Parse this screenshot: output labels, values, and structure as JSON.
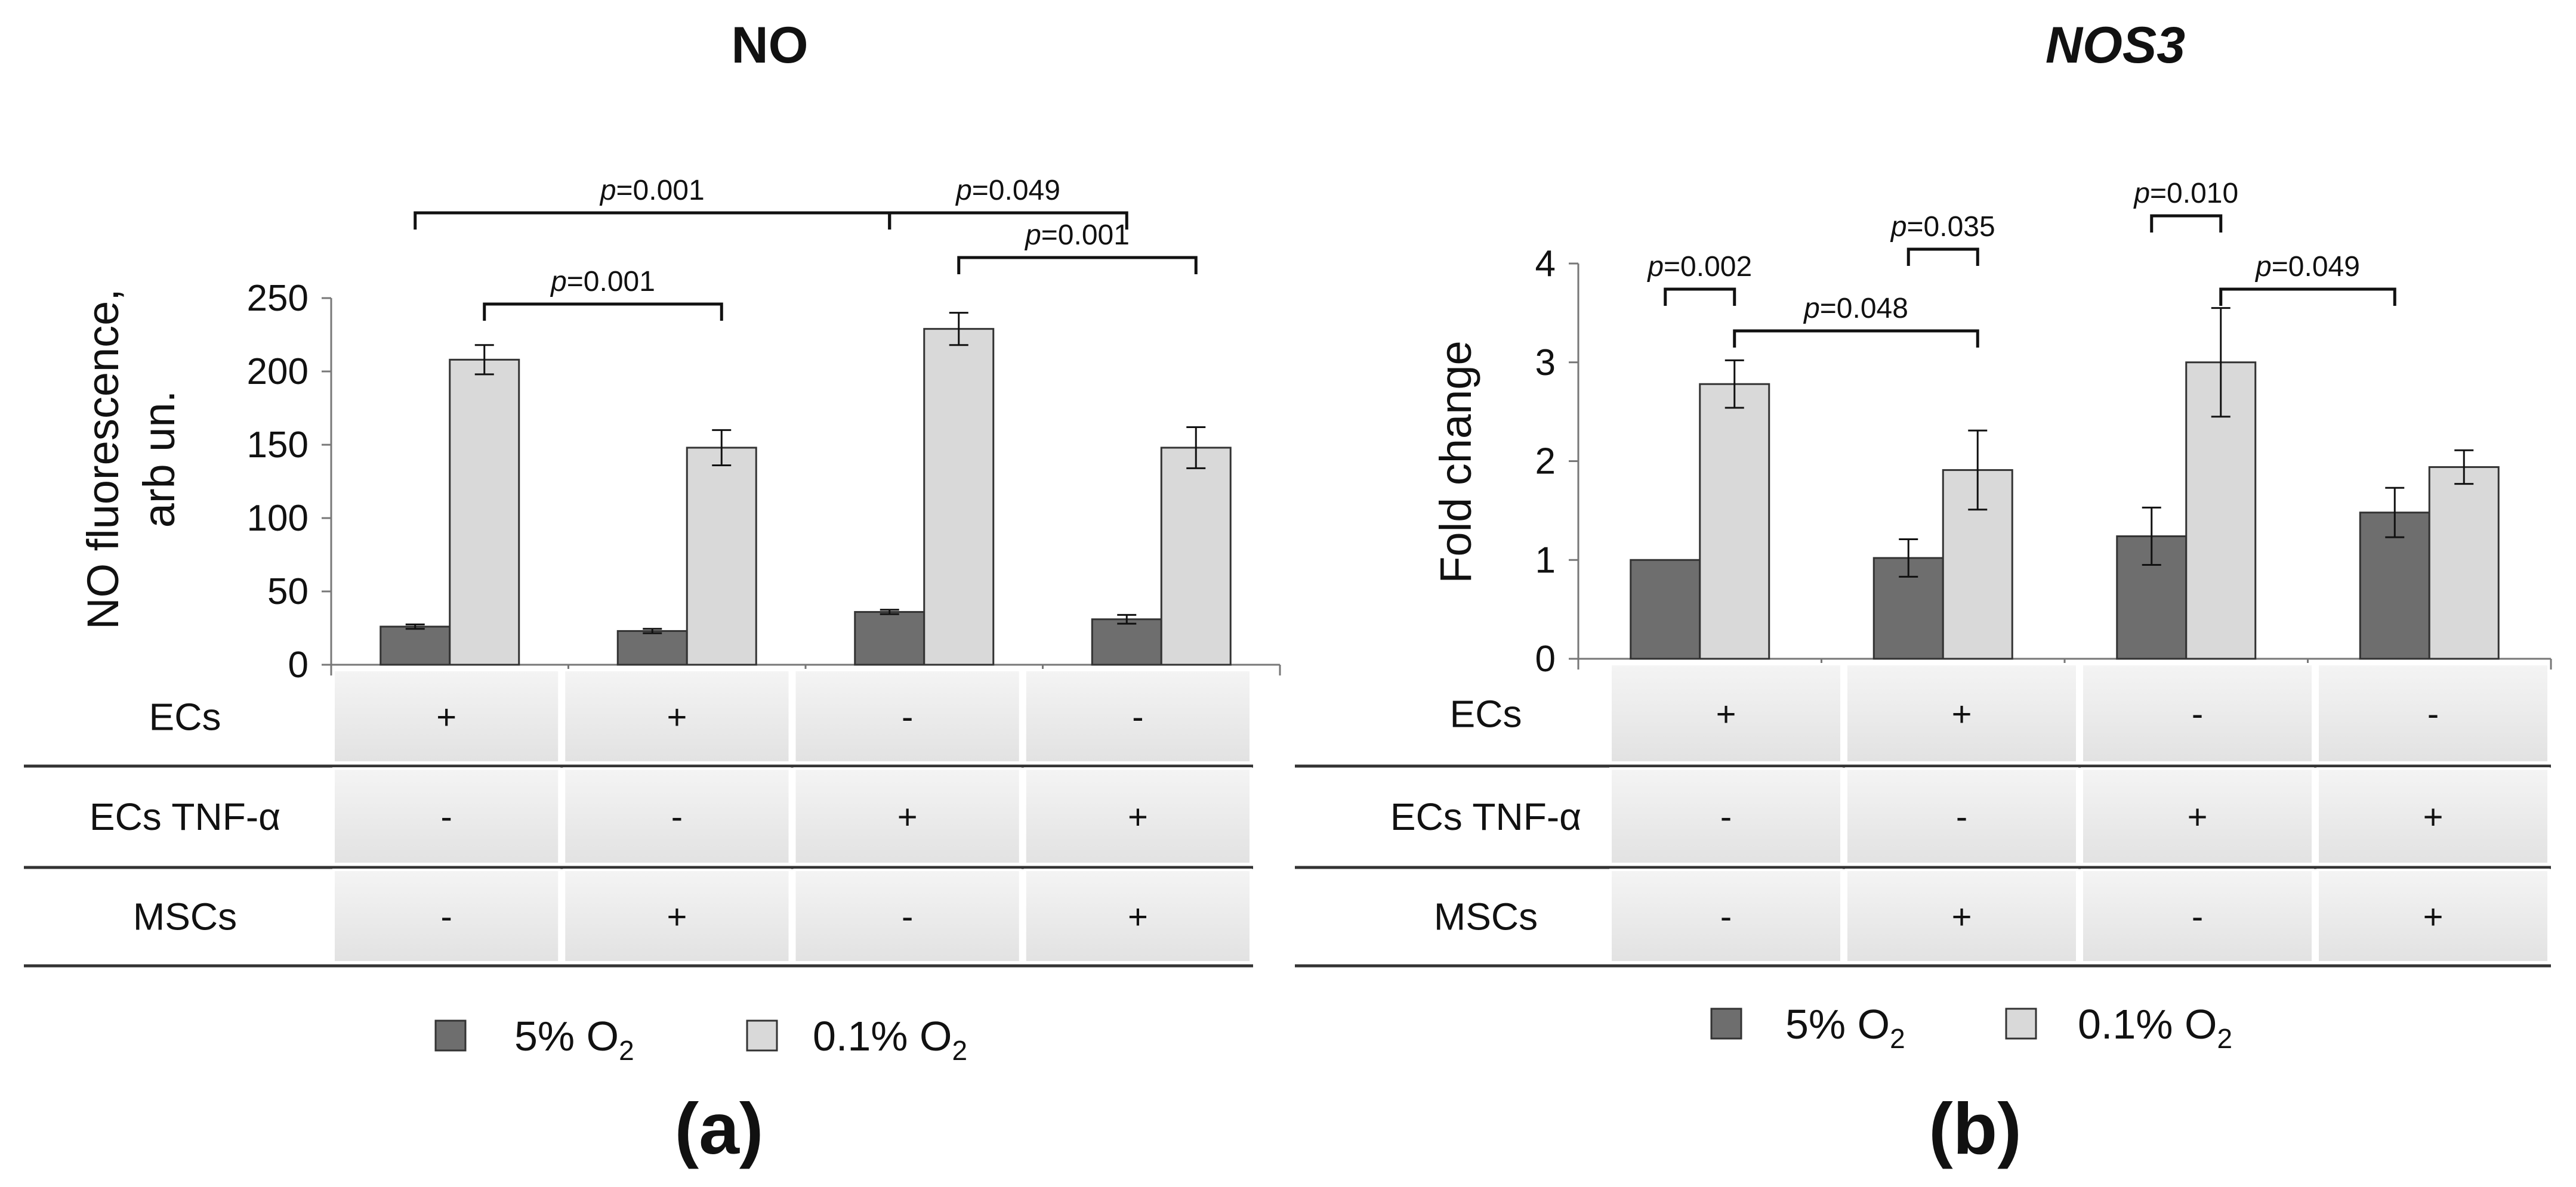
{
  "legend": [
    {
      "name": "5% O",
      "sub": "2",
      "color": "#6e6e6e"
    },
    {
      "name": "0.1% O",
      "sub": "2",
      "color": "#d9d9d9"
    }
  ],
  "row_labels": [
    "ECs",
    "ECs TNF-α",
    "MSCs"
  ],
  "chart_data": [
    {
      "type": "bar",
      "title": "NO",
      "panel_label": "(a)",
      "ylabel_lines": [
        "NO fluorescence,",
        "arb un."
      ],
      "ylim": [
        0,
        250
      ],
      "yticks": [
        0,
        50,
        100,
        150,
        200,
        250
      ],
      "groups": 4,
      "series": [
        {
          "name": "5% O2",
          "values": [
            26,
            23,
            36,
            31
          ],
          "errors": [
            1.5,
            1.5,
            1.5,
            3
          ]
        },
        {
          "name": "0.1% O2",
          "values": [
            208,
            148,
            229,
            148
          ],
          "errors": [
            10,
            12,
            11,
            14
          ]
        }
      ],
      "conditions": [
        [
          "+",
          "+",
          "-",
          "-"
        ],
        [
          "-",
          "-",
          "+",
          "+"
        ],
        [
          "-",
          "+",
          "-",
          "+"
        ]
      ],
      "comparisons": [
        {
          "p": "0.001",
          "from": [
            0,
            0
          ],
          "to": [
            2,
            0
          ],
          "level": 3
        },
        {
          "p": "0.049",
          "from": [
            2,
            0
          ],
          "to": [
            3,
            0
          ],
          "level": 3
        },
        {
          "p": "0.001",
          "from": [
            0,
            1
          ],
          "to": [
            1,
            1
          ],
          "level": 1
        },
        {
          "p": "0.001",
          "from": [
            2,
            1
          ],
          "to": [
            3,
            1
          ],
          "level": 2
        }
      ]
    },
    {
      "type": "bar",
      "title": "NOS3",
      "panel_label": "(b)",
      "ylabel_lines": [
        "Fold change"
      ],
      "ylim": [
        0,
        4
      ],
      "yticks": [
        0,
        1,
        2,
        3,
        4
      ],
      "groups": 4,
      "series": [
        {
          "name": "5% O2",
          "values": [
            1.0,
            1.02,
            1.24,
            1.48
          ],
          "errors": [
            0,
            0.19,
            0.29,
            0.25
          ]
        },
        {
          "name": "0.1% O2",
          "values": [
            2.78,
            1.91,
            3.0,
            1.94
          ],
          "errors": [
            0.24,
            0.4,
            0.55,
            0.17
          ]
        }
      ],
      "conditions": [
        [
          "+",
          "+",
          "-",
          "-"
        ],
        [
          "-",
          "-",
          "+",
          "+"
        ],
        [
          "-",
          "+",
          "-",
          "+"
        ]
      ],
      "comparisons": [
        {
          "p": "0.002",
          "from": [
            0,
            0
          ],
          "to": [
            0,
            1
          ],
          "level": 1
        },
        {
          "p": "0.048",
          "from": [
            0,
            1
          ],
          "to": [
            1,
            1
          ],
          "level": 0
        },
        {
          "p": "0.035",
          "from": [
            1,
            0
          ],
          "to": [
            1,
            1
          ],
          "level": 2
        },
        {
          "p": "0.010",
          "from": [
            2,
            0
          ],
          "to": [
            2,
            1
          ],
          "level": 3
        },
        {
          "p": "0.049",
          "from": [
            2,
            1
          ],
          "to": [
            3,
            0
          ],
          "level": 1
        }
      ]
    }
  ]
}
